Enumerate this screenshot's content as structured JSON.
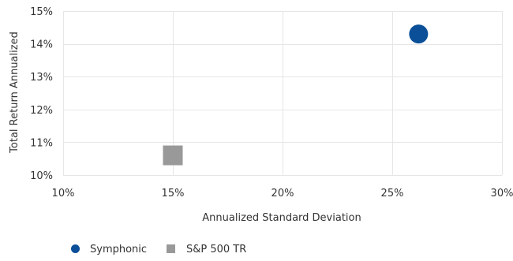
{
  "chart_data": {
    "type": "scatter",
    "title": "",
    "xlabel": "Annualized Standard Deviation",
    "ylabel": "Total Return Annualized",
    "xlim": [
      0.1,
      0.3
    ],
    "ylim": [
      0.1,
      0.15
    ],
    "x_ticks": [
      0.1,
      0.15,
      0.2,
      0.25,
      0.3
    ],
    "x_tick_labels": [
      "10%",
      "15%",
      "20%",
      "25%",
      "30%"
    ],
    "y_ticks": [
      0.1,
      0.11,
      0.12,
      0.13,
      0.14,
      0.15
    ],
    "y_tick_labels": [
      "10%",
      "11%",
      "12%",
      "13%",
      "14%",
      "15%"
    ],
    "grid": true,
    "legend_position": "bottom-left",
    "series": [
      {
        "name": "Symphonic",
        "marker": "circle",
        "color": "#0a4f97",
        "points": [
          {
            "x": 0.262,
            "y": 0.143
          }
        ]
      },
      {
        "name": "S&P 500 TR",
        "marker": "square",
        "color": "#999999",
        "points": [
          {
            "x": 0.15,
            "y": 0.106
          }
        ]
      }
    ]
  }
}
